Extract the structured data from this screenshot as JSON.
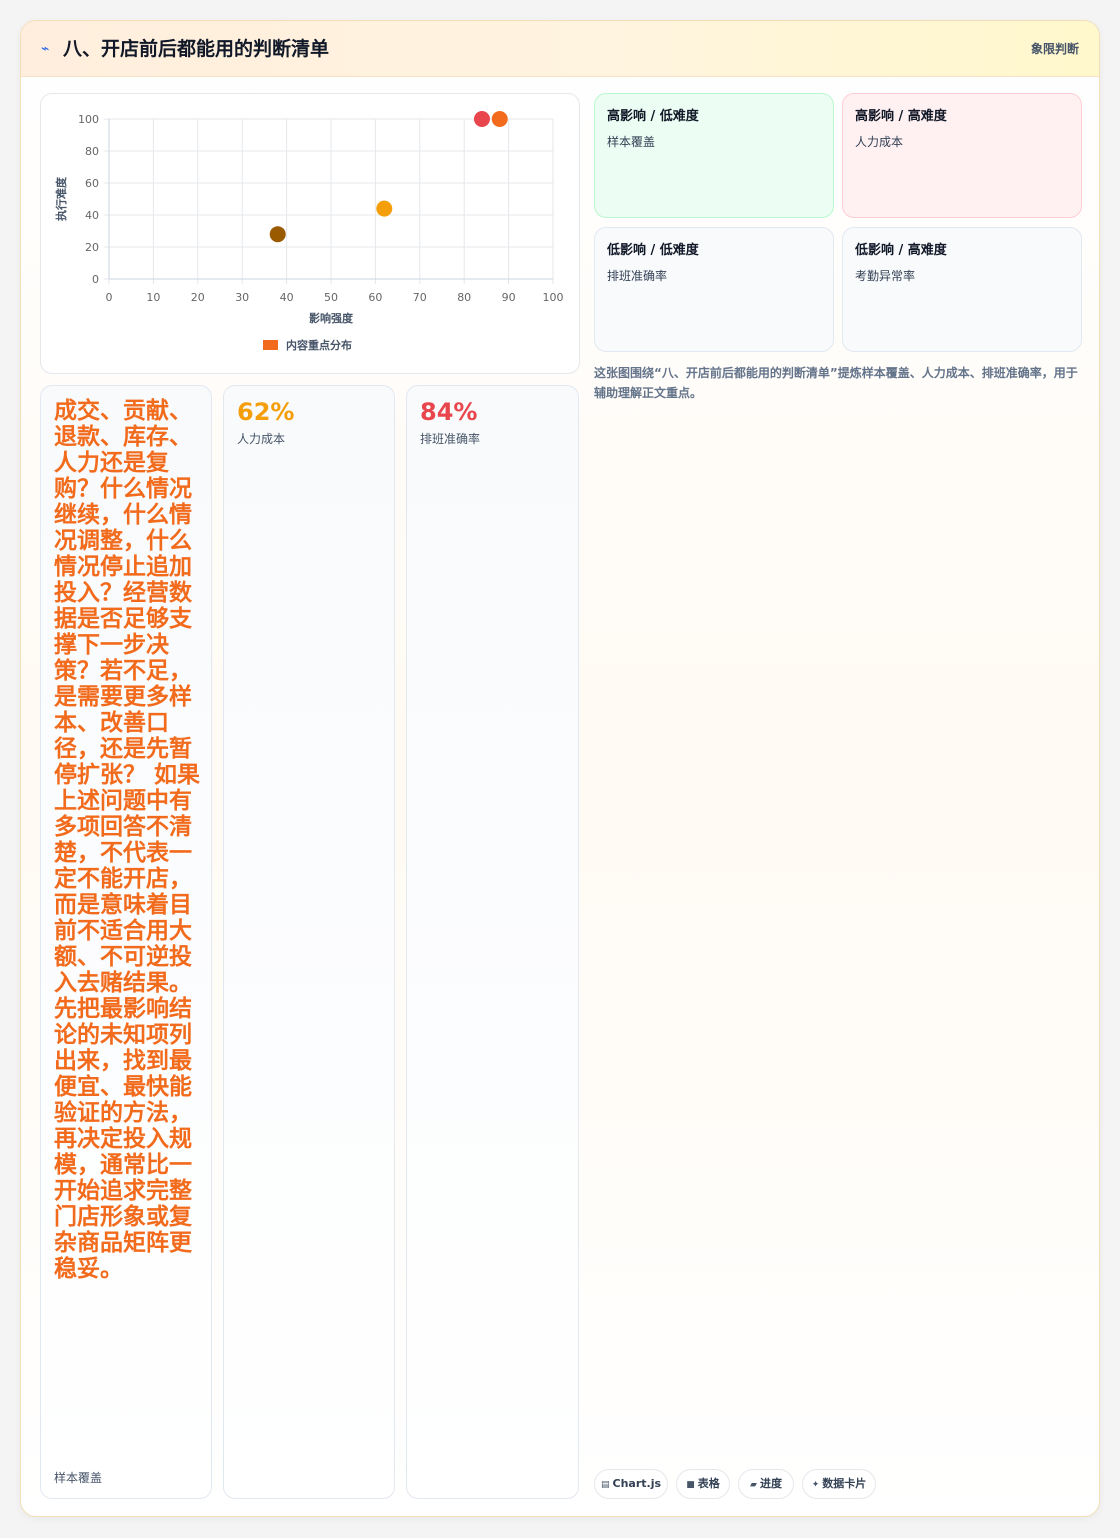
{
  "header": {
    "icon": "bolt-icon",
    "title": "八、开店前后都能用的判断清单",
    "tag": "象限判断"
  },
  "chart_data": {
    "type": "scatter",
    "xlabel": "影响强度",
    "ylabel": "执行难度",
    "xlim": [
      0,
      100
    ],
    "ylim": [
      0,
      100
    ],
    "xticks": [
      "0",
      "10",
      "20",
      "30",
      "40",
      "50",
      "60",
      "70",
      "80",
      "90",
      "100"
    ],
    "yticks": [
      "0",
      "20",
      "40",
      "60",
      "80",
      "100"
    ],
    "grid": true,
    "legend": {
      "label": "内容重点分布",
      "position": "bottom",
      "color": "#f26b1d"
    },
    "points": [
      {
        "x": 38,
        "y": 28,
        "color": "#9a5a00"
      },
      {
        "x": 62,
        "y": 44,
        "color": "#f59e0b"
      },
      {
        "x": 84,
        "y": 100,
        "color": "#e8454c"
      },
      {
        "x": 88,
        "y": 100,
        "color": "#f26b1d"
      }
    ]
  },
  "quadrants": [
    {
      "title": "高影响 / 低难度",
      "item": "样本覆盖"
    },
    {
      "title": "高影响 / 高难度",
      "item": "人力成本"
    },
    {
      "title": "低影响 / 低难度",
      "item": "排班准确率"
    },
    {
      "title": "低影响 / 高难度",
      "item": "考勤异常率"
    }
  ],
  "description": "这张图围绕“八、开店前后都能用的判断清单”提炼样本覆盖、人力成本、排班准确率，用于辅助理解正文重点。",
  "stats": [
    {
      "value": "成交、贡献、退款、库存、人力还是复购？什么情况继续，什么情况调整，什么情况停止追加投入？经营数据是否足够支撑下一步决策？若不足，是需要更多样本、改善口径，还是先暂停扩张？ 如果上述问题中有多项回答不清楚，不代表一定不能开店，而是意味着目前不适合用大额、不可逆投入去赌结果。先把最影响结论的未知项列出来，找到最便宜、最快能验证的方法，再决定投入规模，通常比一开始追求完整门店形象或复杂商品矩阵更稳妥。",
      "label": "样本覆盖",
      "color": "#f26b1d"
    },
    {
      "value": "62%",
      "label": "人力成本",
      "color": "#f59e0b"
    },
    {
      "value": "84%",
      "label": "排班准确率",
      "color": "#e8454c"
    }
  ],
  "chips": [
    {
      "icon": "chart-icon",
      "label": "Chart.js"
    },
    {
      "icon": "table-icon",
      "label": "表格"
    },
    {
      "icon": "progress-icon",
      "label": "进度"
    },
    {
      "icon": "data-card-icon",
      "label": "数据卡片"
    }
  ]
}
